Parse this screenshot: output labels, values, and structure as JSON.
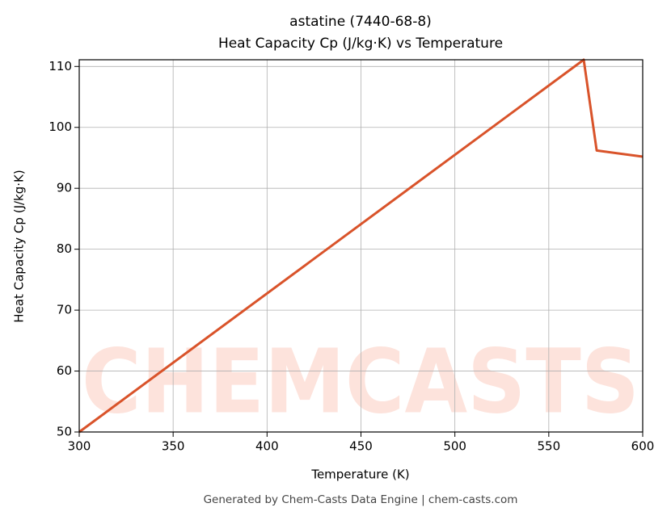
{
  "chart_data": {
    "type": "line",
    "title": "astatine (7440-68-8)",
    "subtitle": "Heat Capacity Cp (J/kg·K) vs Temperature",
    "xlabel": "Temperature (K)",
    "ylabel": "Heat Capacity Cp (J/kg·K)",
    "footer": "Generated by Chem-Casts Data Engine | chem-casts.com",
    "watermark": "CHEMCASTS",
    "x": [
      300,
      568.6,
      575.5,
      600
    ],
    "series": [
      {
        "name": "Cp",
        "color": "#d9532a",
        "values": [
          50,
          111.1,
          96.2,
          95.2
        ]
      }
    ],
    "xlim": [
      300,
      600
    ],
    "xticks": [
      300,
      350,
      400,
      450,
      500,
      550,
      600
    ],
    "ylim": [
      50,
      111.1
    ],
    "yticks": [
      50,
      60,
      70,
      80,
      90,
      100,
      110
    ],
    "grid": true
  }
}
